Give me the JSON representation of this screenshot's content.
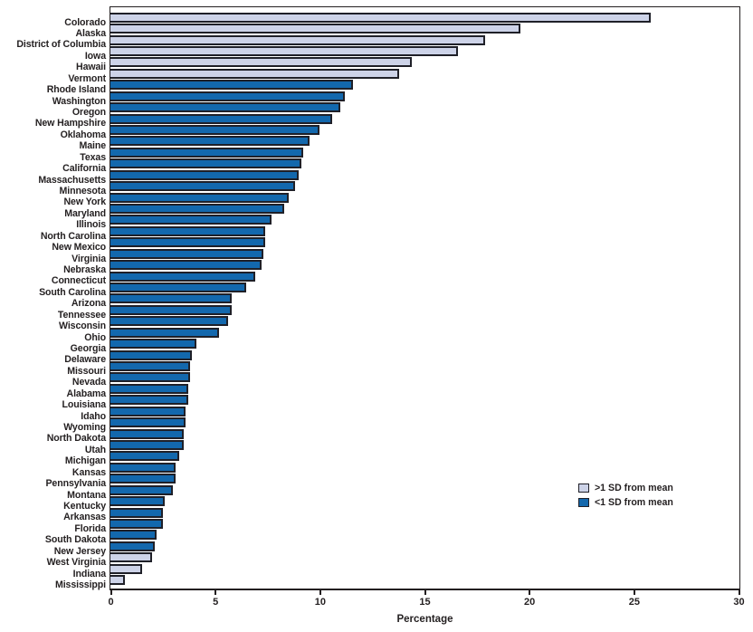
{
  "figure": {
    "legend": [
      {
        "label": ">1 SD from mean",
        "color": "#cdd3e8"
      },
      {
        "label": "<1 SD from mean",
        "color": "#1368ad"
      }
    ]
  },
  "chart_data": {
    "type": "bar",
    "orientation": "horizontal",
    "title": "",
    "xlabel": "Percentage",
    "ylabel": "",
    "xlim": [
      0,
      30
    ],
    "xticks": [
      0,
      5,
      10,
      15,
      20,
      25,
      30
    ],
    "grid": false,
    "legend_position": "right-center",
    "group_colors": {
      ">1 SD from mean": "#cdd3e8",
      "<1 SD from mean": "#1368ad"
    },
    "bars": [
      {
        "state": "Colorado",
        "value": 25.8,
        "group": ">1 SD from mean"
      },
      {
        "state": "Alaska",
        "value": 19.6,
        "group": ">1 SD from mean"
      },
      {
        "state": "District of Columbia",
        "value": 17.9,
        "group": ">1 SD from mean"
      },
      {
        "state": "Iowa",
        "value": 16.6,
        "group": ">1 SD from mean"
      },
      {
        "state": "Hawaii",
        "value": 14.4,
        "group": ">1 SD from mean"
      },
      {
        "state": "Vermont",
        "value": 13.8,
        "group": ">1 SD from mean"
      },
      {
        "state": "Rhode Island",
        "value": 11.6,
        "group": "<1 SD from mean"
      },
      {
        "state": "Washington",
        "value": 11.2,
        "group": "<1 SD from mean"
      },
      {
        "state": "Oregon",
        "value": 11.0,
        "group": "<1 SD from mean"
      },
      {
        "state": "New Hampshire",
        "value": 10.6,
        "group": "<1 SD from mean"
      },
      {
        "state": "Oklahoma",
        "value": 10.0,
        "group": "<1 SD from mean"
      },
      {
        "state": "Maine",
        "value": 9.5,
        "group": "<1 SD from mean"
      },
      {
        "state": "Texas",
        "value": 9.2,
        "group": "<1 SD from mean"
      },
      {
        "state": "California",
        "value": 9.1,
        "group": "<1 SD from mean"
      },
      {
        "state": "Massachusetts",
        "value": 9.0,
        "group": "<1 SD from mean"
      },
      {
        "state": "Minnesota",
        "value": 8.8,
        "group": "<1 SD from mean"
      },
      {
        "state": "New York",
        "value": 8.5,
        "group": "<1 SD from mean"
      },
      {
        "state": "Maryland",
        "value": 8.3,
        "group": "<1 SD from mean"
      },
      {
        "state": "Illinois",
        "value": 7.7,
        "group": "<1 SD from mean"
      },
      {
        "state": "North Carolina",
        "value": 7.4,
        "group": "<1 SD from mean"
      },
      {
        "state": "New Mexico",
        "value": 7.4,
        "group": "<1 SD from mean"
      },
      {
        "state": "Virginia",
        "value": 7.3,
        "group": "<1 SD from mean"
      },
      {
        "state": "Nebraska",
        "value": 7.2,
        "group": "<1 SD from mean"
      },
      {
        "state": "Connecticut",
        "value": 6.9,
        "group": "<1 SD from mean"
      },
      {
        "state": "South Carolina",
        "value": 6.5,
        "group": "<1 SD from mean"
      },
      {
        "state": "Arizona",
        "value": 5.8,
        "group": "<1 SD from mean"
      },
      {
        "state": "Tennessee",
        "value": 5.8,
        "group": "<1 SD from mean"
      },
      {
        "state": "Wisconsin",
        "value": 5.6,
        "group": "<1 SD from mean"
      },
      {
        "state": "Ohio",
        "value": 5.2,
        "group": "<1 SD from mean"
      },
      {
        "state": "Georgia",
        "value": 4.1,
        "group": "<1 SD from mean"
      },
      {
        "state": "Delaware",
        "value": 3.9,
        "group": "<1 SD from mean"
      },
      {
        "state": "Missouri",
        "value": 3.8,
        "group": "<1 SD from mean"
      },
      {
        "state": "Nevada",
        "value": 3.8,
        "group": "<1 SD from mean"
      },
      {
        "state": "Alabama",
        "value": 3.7,
        "group": "<1 SD from mean"
      },
      {
        "state": "Louisiana",
        "value": 3.7,
        "group": "<1 SD from mean"
      },
      {
        "state": "Idaho",
        "value": 3.6,
        "group": "<1 SD from mean"
      },
      {
        "state": "Wyoming",
        "value": 3.6,
        "group": "<1 SD from mean"
      },
      {
        "state": "North Dakota",
        "value": 3.5,
        "group": "<1 SD from mean"
      },
      {
        "state": "Utah",
        "value": 3.5,
        "group": "<1 SD from mean"
      },
      {
        "state": "Michigan",
        "value": 3.3,
        "group": "<1 SD from mean"
      },
      {
        "state": "Kansas",
        "value": 3.1,
        "group": "<1 SD from mean"
      },
      {
        "state": "Pennsylvania",
        "value": 3.1,
        "group": "<1 SD from mean"
      },
      {
        "state": "Montana",
        "value": 3.0,
        "group": "<1 SD from mean"
      },
      {
        "state": "Kentucky",
        "value": 2.6,
        "group": "<1 SD from mean"
      },
      {
        "state": "Arkansas",
        "value": 2.5,
        "group": "<1 SD from mean"
      },
      {
        "state": "Florida",
        "value": 2.5,
        "group": "<1 SD from mean"
      },
      {
        "state": "South Dakota",
        "value": 2.2,
        "group": "<1 SD from mean"
      },
      {
        "state": "New Jersey",
        "value": 2.1,
        "group": "<1 SD from mean"
      },
      {
        "state": "West Virginia",
        "value": 2.0,
        "group": ">1 SD from mean"
      },
      {
        "state": "Indiana",
        "value": 1.5,
        "group": ">1 SD from mean"
      },
      {
        "state": "Mississippi",
        "value": 0.7,
        "group": ">1 SD from mean"
      }
    ]
  }
}
